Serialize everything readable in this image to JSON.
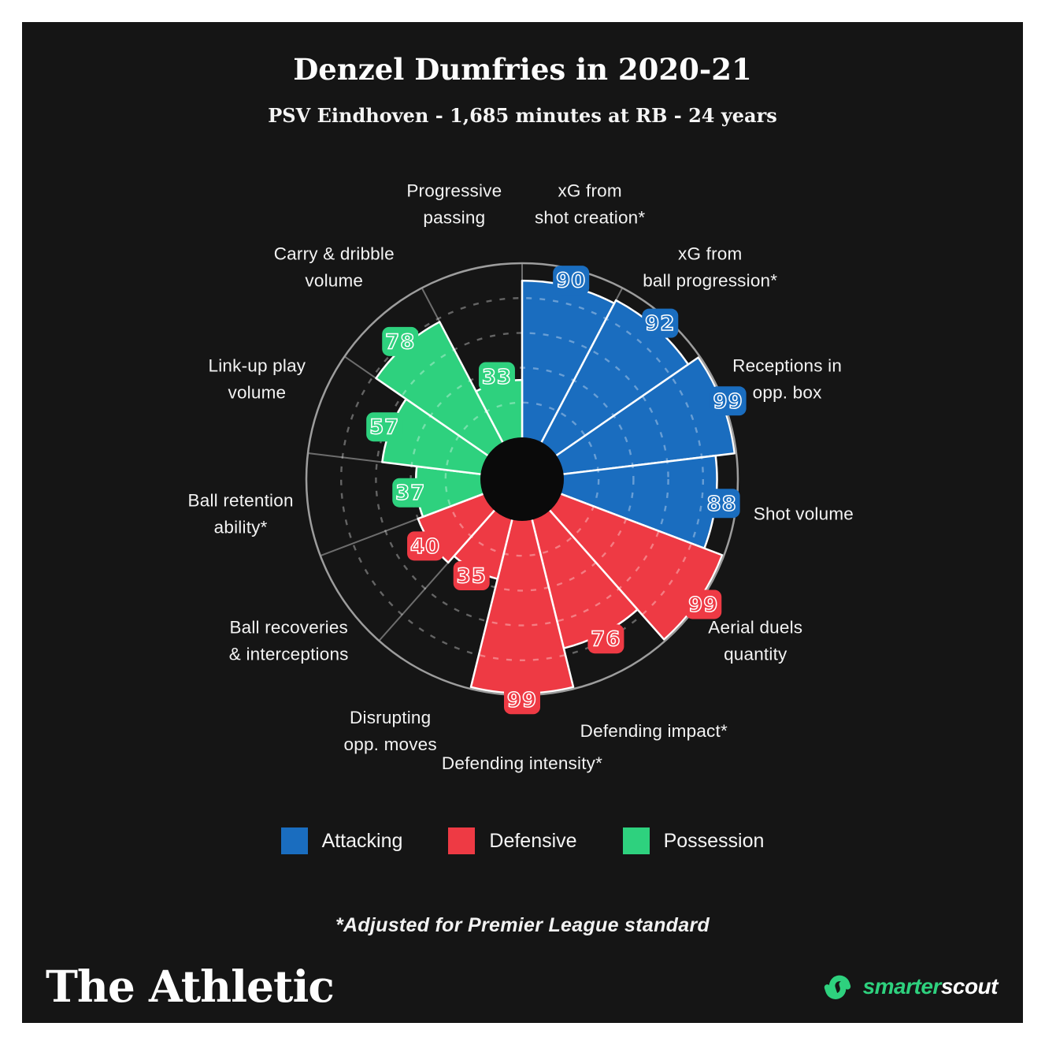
{
  "header": {
    "title": "Denzel Dumfries in 2020-21",
    "subtitle": "PSV Eindhoven - 1,685 minutes at RB - 24 years"
  },
  "chart_data": {
    "type": "bar",
    "variant": "polar-pizza",
    "title": "Denzel Dumfries in 2020-21",
    "subtitle": "PSV Eindhoven - 1,685 minutes at RB - 24 years",
    "scale": {
      "min": 0,
      "max": 100,
      "gridlines": [
        20,
        40,
        60,
        80
      ],
      "grid_style": "dashed"
    },
    "legend_position": "bottom",
    "colors": {
      "attacking": "#1a6dbf",
      "defensive": "#ee3a44",
      "possession": "#2ed17e"
    },
    "sectors": [
      {
        "name": "xG from shot creation*",
        "lines": [
          "xG from",
          "shot creation*"
        ],
        "value": 90,
        "group": "attacking"
      },
      {
        "name": "xG from ball progression*",
        "lines": [
          "xG from",
          "ball progression*"
        ],
        "value": 92,
        "group": "attacking"
      },
      {
        "name": "Receptions in opp. box",
        "lines": [
          "Receptions in",
          "opp. box"
        ],
        "value": 99,
        "group": "attacking"
      },
      {
        "name": "Shot volume",
        "lines": [
          "Shot volume"
        ],
        "value": 88,
        "group": "attacking"
      },
      {
        "name": "Aerial duels quantity",
        "lines": [
          "Aerial duels",
          "quantity"
        ],
        "value": 99,
        "group": "defensive"
      },
      {
        "name": "Defending impact*",
        "lines": [
          "Defending impact*"
        ],
        "value": 76,
        "group": "defensive"
      },
      {
        "name": "Defending intensity*",
        "lines": [
          "Defending intensity*"
        ],
        "value": 99,
        "group": "defensive"
      },
      {
        "name": "Disrupting opp. moves",
        "lines": [
          "Disrupting",
          "opp. moves"
        ],
        "value": 35,
        "group": "defensive"
      },
      {
        "name": "Ball recoveries & interceptions",
        "lines": [
          "Ball recoveries",
          "& interceptions"
        ],
        "value": 40,
        "group": "defensive"
      },
      {
        "name": "Ball retention ability*",
        "lines": [
          "Ball retention",
          "ability*"
        ],
        "value": 37,
        "group": "possession"
      },
      {
        "name": "Link-up play volume",
        "lines": [
          "Link-up play",
          "volume"
        ],
        "value": 57,
        "group": "possession"
      },
      {
        "name": "Carry & dribble volume",
        "lines": [
          "Carry & dribble",
          "volume"
        ],
        "value": 78,
        "group": "possession"
      },
      {
        "name": "Progressive passing",
        "lines": [
          "Progressive",
          "passing"
        ],
        "value": 33,
        "group": "possession"
      }
    ],
    "legend": [
      {
        "label": "Attacking",
        "color": "#1a6dbf"
      },
      {
        "label": "Defensive",
        "color": "#ee3a44"
      },
      {
        "label": "Possession",
        "color": "#2ed17e"
      }
    ]
  },
  "footnote": "*Adjusted for Premier League standard",
  "branding": {
    "left_logo": "The Athletic",
    "right_logo_green": "smarter",
    "right_logo_white": "scout"
  }
}
